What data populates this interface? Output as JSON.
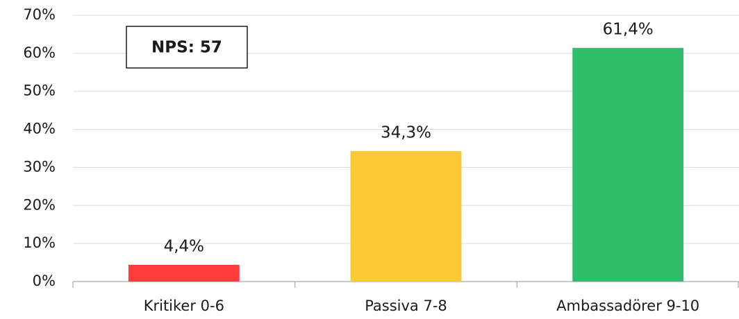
{
  "chart_data": {
    "type": "bar",
    "annotation": "NPS: 57",
    "categories": [
      "Kritiker 0-6",
      "Passiva 7-8",
      "Ambassadörer 9-10"
    ],
    "values": [
      4.4,
      34.3,
      61.4
    ],
    "value_labels": [
      "4,4%",
      "34,3%",
      "61,4%"
    ],
    "colors": [
      "#ff3b3b",
      "#fcc932",
      "#2fbd6b"
    ],
    "ylim": [
      0,
      70
    ],
    "yticks": [
      {
        "value": 0,
        "label": "0%"
      },
      {
        "value": 10,
        "label": "10%"
      },
      {
        "value": 20,
        "label": "20%"
      },
      {
        "value": 30,
        "label": "30%"
      },
      {
        "value": 40,
        "label": "40%"
      },
      {
        "value": 50,
        "label": "50%"
      },
      {
        "value": 60,
        "label": "60%"
      },
      {
        "value": 70,
        "label": "70%"
      }
    ],
    "grid": true
  }
}
